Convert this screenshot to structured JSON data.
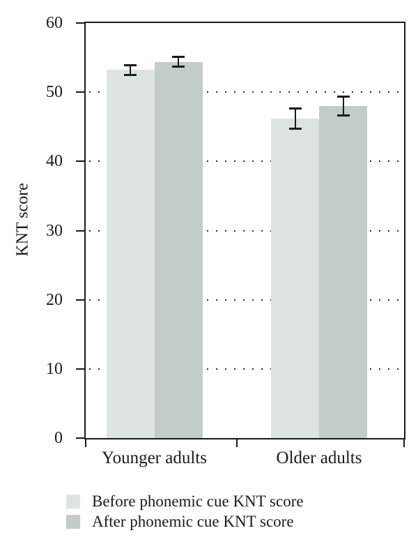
{
  "chart_data": {
    "type": "bar",
    "title": "",
    "categories": [
      "Younger adults",
      "Older adults"
    ],
    "series": [
      {
        "name": "Before phonemic cue KNT score",
        "color": "#dee4e2",
        "values": [
          53.2,
          46.2
        ],
        "errors": [
          0.8,
          1.5
        ]
      },
      {
        "name": "After phonemic cue KNT score",
        "color": "#c2ccc8",
        "values": [
          54.4,
          48.0
        ],
        "errors": [
          0.8,
          1.4
        ]
      }
    ],
    "xlabel": "",
    "ylabel": "KNT score",
    "ylim": [
      0,
      60
    ],
    "yticks": [
      0,
      10,
      20,
      30,
      40,
      50,
      60
    ],
    "grid": {
      "horizontal": true,
      "style": "dotted",
      "at": [
        10,
        20,
        30,
        40,
        50
      ]
    },
    "error_bars": true,
    "legend_position": "below-left",
    "colors": {
      "axis": "#1a1a1a",
      "text": "#1a1a1a",
      "grid_dot": "#2b2b2b"
    }
  }
}
